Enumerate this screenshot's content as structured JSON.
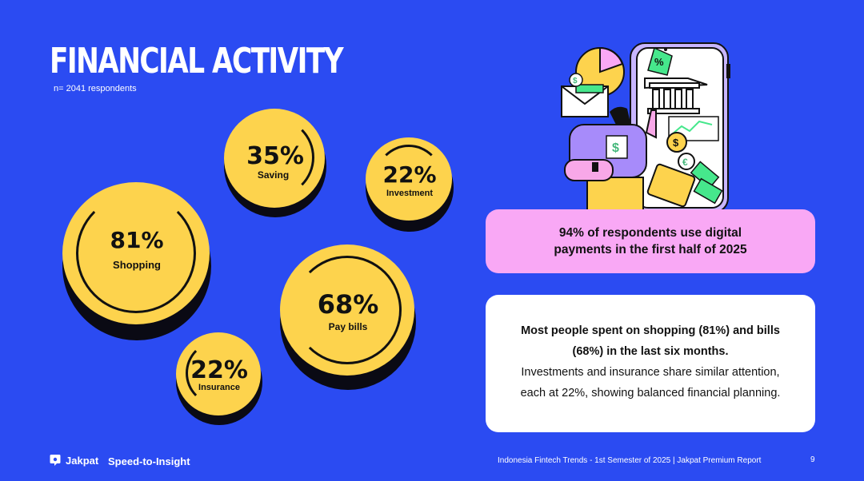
{
  "header": {
    "title": "FINANCIAL ACTIVITY",
    "sample": "n= 2041 respondents"
  },
  "activities": [
    {
      "percent": "81%",
      "label": "Shopping",
      "value": 81
    },
    {
      "percent": "35%",
      "label": "Saving",
      "value": 35
    },
    {
      "percent": "22%",
      "label": "Investment",
      "value": 22
    },
    {
      "percent": "68%",
      "label": "Pay bills",
      "value": 68
    },
    {
      "percent": "22%",
      "label": "Insurance",
      "value": 22
    }
  ],
  "highlight": "94% of respondents  use digital payments in the first half of 2025",
  "insight": {
    "bold": "Most people spent on shopping (81%) and bills (68%) in the last six months.",
    "text": "Investments and insurance share similar attention, each at 22%, showing balanced financial planning."
  },
  "illustration": {
    "badge_text": "%",
    "currency_symbols": [
      "$",
      "$",
      "$",
      "€"
    ]
  },
  "footer": {
    "brand": "Jakpat",
    "tagline": "Speed-to-Insight",
    "report": "Indonesia Fintech Trends - 1st Semester of 2025 | Jakpat Premium Report",
    "page": "9"
  },
  "colors": {
    "background": "#2b4bf2",
    "coin": "#fdd34d",
    "pink": "#f9a8f5",
    "dark": "#111111"
  }
}
